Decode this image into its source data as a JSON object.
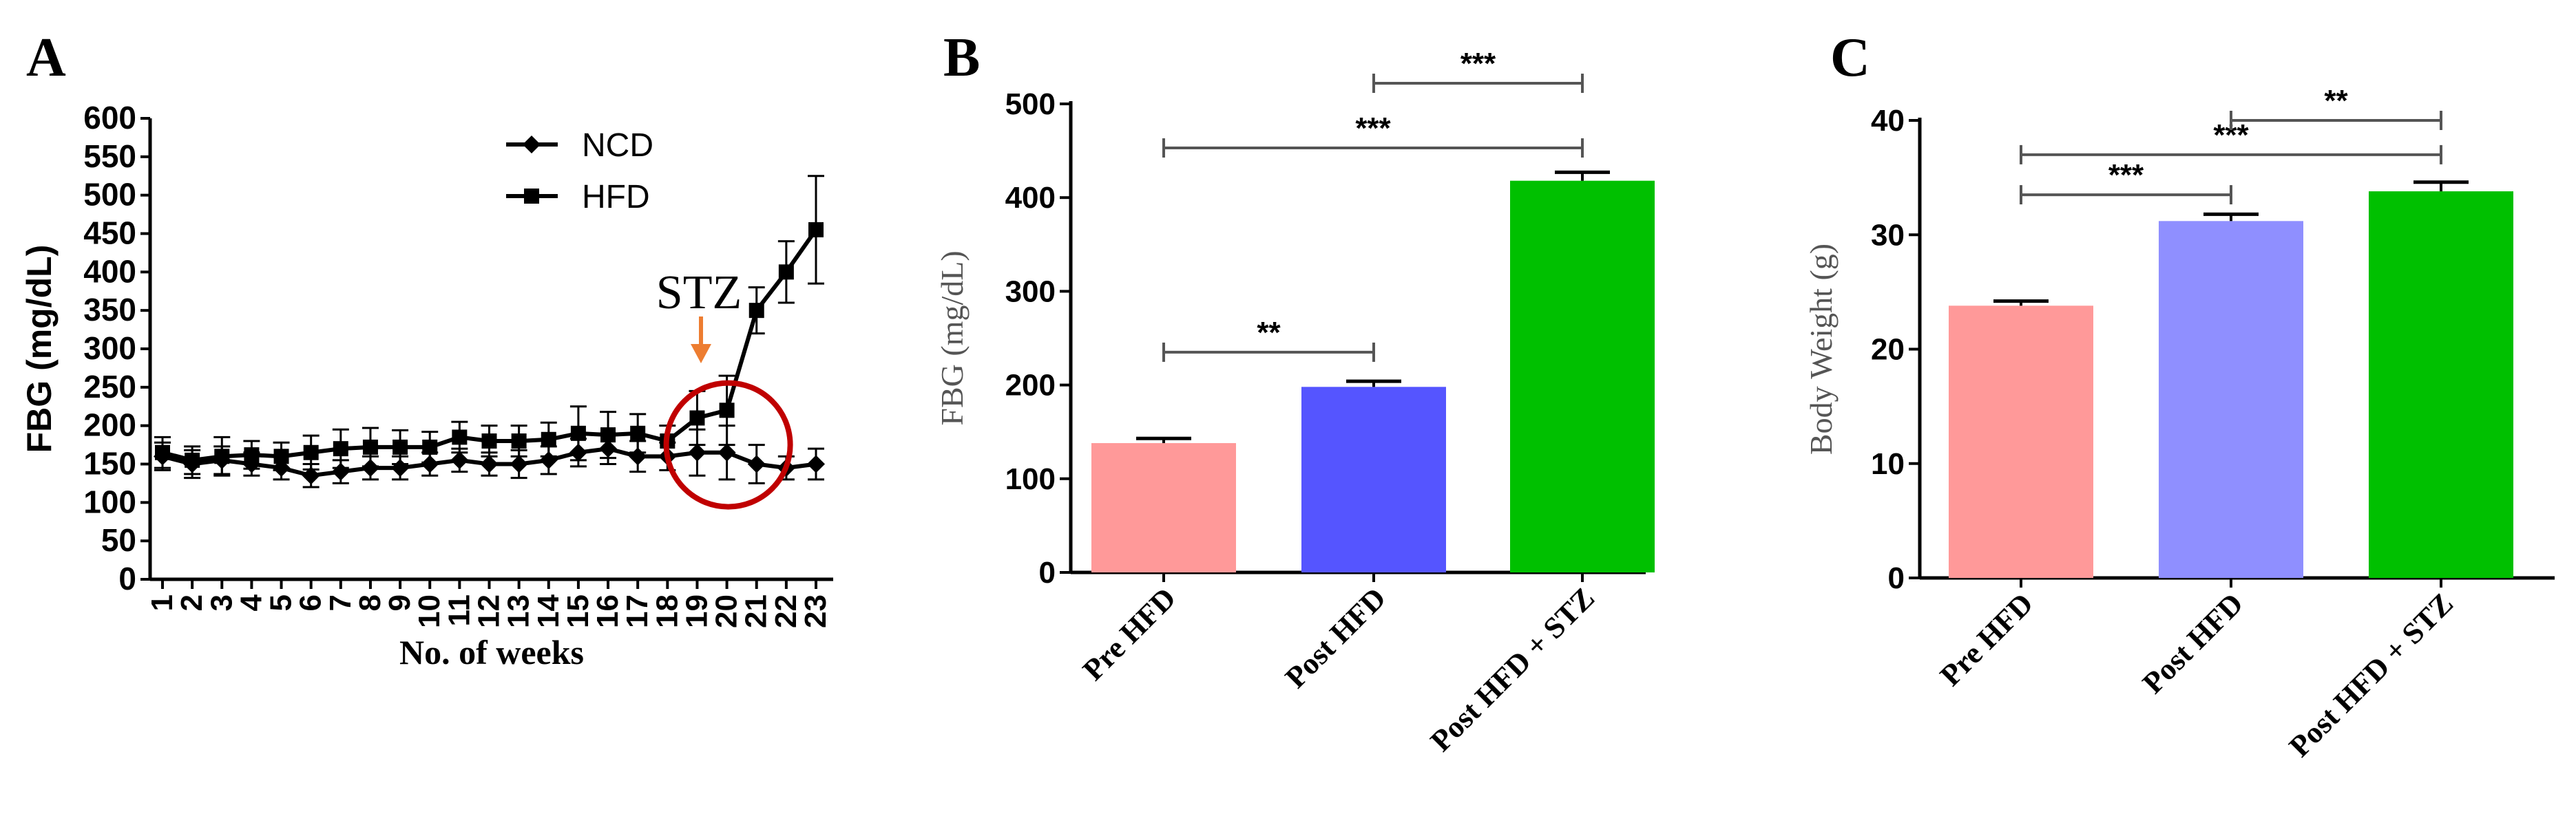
{
  "chart_data": [
    {
      "panel": "A",
      "type": "line",
      "xlabel": "No. of weeks",
      "ylabel": "FBG (mg/dL)",
      "ylim": [
        0,
        600
      ],
      "yticks": [
        0,
        50,
        100,
        150,
        200,
        250,
        300,
        350,
        400,
        450,
        500,
        550,
        600
      ],
      "categories": [
        "1",
        "2",
        "3",
        "4",
        "5",
        "6",
        "7",
        "8",
        "9",
        "10",
        "11",
        "12",
        "13",
        "14",
        "15",
        "16",
        "17",
        "18",
        "19",
        "20",
        "21",
        "22",
        "23"
      ],
      "series": [
        {
          "name": "NCD",
          "marker": "diamond",
          "values": [
            160,
            150,
            155,
            150,
            145,
            135,
            140,
            145,
            145,
            150,
            155,
            150,
            150,
            155,
            165,
            170,
            160,
            160,
            165,
            165,
            150,
            145,
            150
          ],
          "errors": [
            18,
            18,
            18,
            15,
            15,
            15,
            15,
            15,
            15,
            15,
            15,
            15,
            18,
            18,
            18,
            20,
            20,
            18,
            30,
            35,
            25,
            15,
            20
          ]
        },
        {
          "name": "HFD",
          "marker": "square",
          "values": [
            165,
            155,
            160,
            162,
            160,
            165,
            170,
            172,
            172,
            172,
            185,
            180,
            180,
            182,
            190,
            188,
            190,
            180,
            210,
            220,
            350,
            400,
            455
          ],
          "errors": [
            20,
            18,
            25,
            18,
            18,
            22,
            25,
            25,
            22,
            20,
            20,
            20,
            20,
            22,
            35,
            30,
            25,
            20,
            35,
            45,
            30,
            40,
            70
          ]
        }
      ],
      "legend_position": "top-right",
      "annotation": {
        "text": "STZ",
        "arrow_color": "#ED7D31",
        "circle_color": "#C00000",
        "at_week": 20
      }
    },
    {
      "panel": "B",
      "type": "bar",
      "categories": [
        "Pre HFD",
        "Post HFD",
        "Post HFD + STZ"
      ],
      "values": [
        138,
        198,
        418
      ],
      "errors": [
        5,
        6,
        9
      ],
      "colors": [
        "#FF9999",
        "#5555FF",
        "#00C000"
      ],
      "ylabel": "FBG (mg/dL)",
      "ylim": [
        0,
        500
      ],
      "yticks": [
        0,
        100,
        200,
        300,
        400,
        500
      ],
      "significance": [
        {
          "from": 0,
          "to": 1,
          "y": 235,
          "label": "**"
        },
        {
          "from": 0,
          "to": 2,
          "y": 453,
          "label": "***"
        },
        {
          "from": 1,
          "to": 2,
          "y": 522,
          "label": "***"
        }
      ]
    },
    {
      "panel": "C",
      "type": "bar",
      "categories": [
        "Pre HFD",
        "Post HFD",
        "Post HFD + STZ"
      ],
      "values": [
        23.8,
        31.2,
        33.8
      ],
      "errors": [
        0.4,
        0.6,
        0.8
      ],
      "colors": [
        "#FF9999",
        "#8F8FFF",
        "#00C000"
      ],
      "ylabel": "Body Weight (g)",
      "ylim": [
        0,
        40
      ],
      "yticks": [
        0,
        10,
        20,
        30,
        40
      ],
      "significance": [
        {
          "from": 0,
          "to": 1,
          "y": 33.5,
          "label": "***"
        },
        {
          "from": 0,
          "to": 2,
          "y": 37.0,
          "label": "***"
        },
        {
          "from": 1,
          "to": 2,
          "y": 40.0,
          "label": "**"
        }
      ]
    }
  ]
}
